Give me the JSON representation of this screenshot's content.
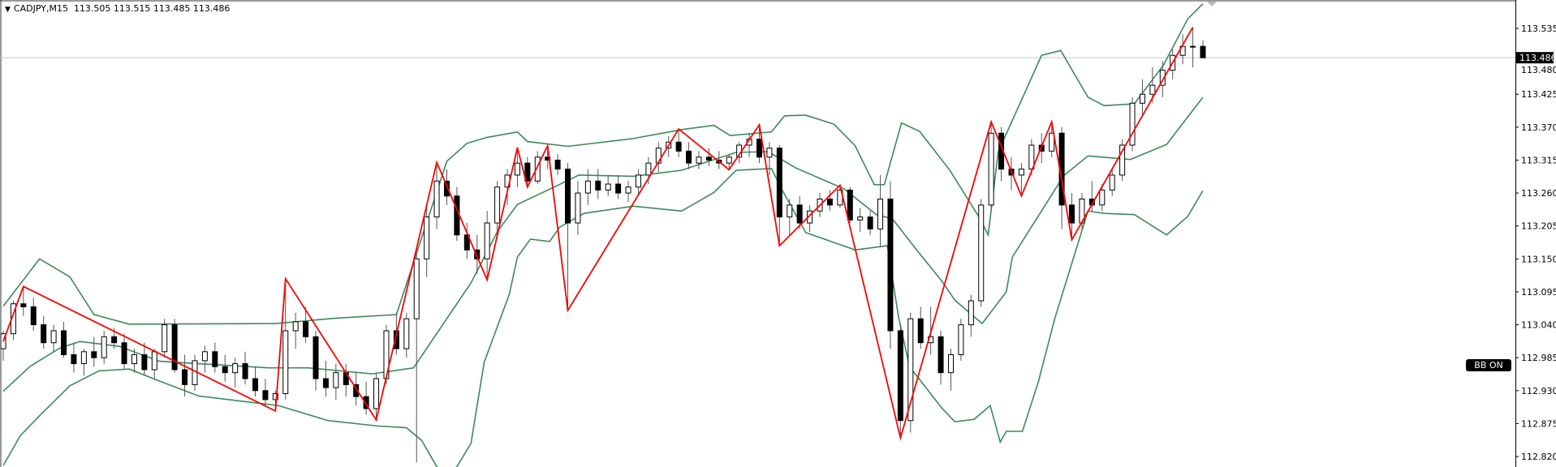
{
  "header": {
    "symbol_timeframe": "CADJPY,M15",
    "ohlc_readout": "113.505 113.515 113.485 113.486"
  },
  "bb_button": {
    "label": "BB ON"
  },
  "colors": {
    "bands": "#3a8a5a",
    "zigzag": "#ff0000",
    "bull_body": "#ffffff",
    "bear_body": "#000000",
    "bid_line": "#c8c8c8",
    "axis": "#000000"
  },
  "chart_data": {
    "type": "candlestick",
    "symbol": "CADJPY",
    "timeframe": "M15",
    "ylim": [
      112.802,
      113.582
    ],
    "y_ticks": [
      "113.535",
      "113.480",
      "113.425",
      "113.370",
      "113.315",
      "113.260",
      "113.205",
      "113.150",
      "113.095",
      "113.040",
      "112.985",
      "112.930",
      "112.875",
      "112.820"
    ],
    "bid": {
      "value": 113.486,
      "label": "113.486"
    },
    "candles_ohlc": [
      [
        113.0,
        113.03,
        112.98,
        113.025
      ],
      [
        113.025,
        113.08,
        113.015,
        113.075
      ],
      [
        113.075,
        113.104,
        113.055,
        113.07
      ],
      [
        113.07,
        113.085,
        113.03,
        113.04
      ],
      [
        113.04,
        113.055,
        113.0,
        113.01
      ],
      [
        113.01,
        113.04,
        112.995,
        113.03
      ],
      [
        113.03,
        113.045,
        112.985,
        112.99
      ],
      [
        112.99,
        113.01,
        112.96,
        112.975
      ],
      [
        112.975,
        113.0,
        112.955,
        112.995
      ],
      [
        112.995,
        113.02,
        112.97,
        112.985
      ],
      [
        112.985,
        113.03,
        112.975,
        113.02
      ],
      [
        113.02,
        113.035,
        113.0,
        113.01
      ],
      [
        113.01,
        113.025,
        112.965,
        112.975
      ],
      [
        112.975,
        113.0,
        112.96,
        112.99
      ],
      [
        112.99,
        113.01,
        112.955,
        112.965
      ],
      [
        112.965,
        113.0,
        112.95,
        112.995
      ],
      [
        112.995,
        113.05,
        112.985,
        113.04
      ],
      [
        113.04,
        113.05,
        112.96,
        112.965
      ],
      [
        112.965,
        112.99,
        112.92,
        112.94
      ],
      [
        112.94,
        112.99,
        112.93,
        112.98
      ],
      [
        112.98,
        113.005,
        112.96,
        112.995
      ],
      [
        112.995,
        113.01,
        112.96,
        112.97
      ],
      [
        112.97,
        112.99,
        112.945,
        112.96
      ],
      [
        112.96,
        112.985,
        112.935,
        112.975
      ],
      [
        112.975,
        112.995,
        112.94,
        112.95
      ],
      [
        112.95,
        112.97,
        112.92,
        112.93
      ],
      [
        112.93,
        112.95,
        112.905,
        112.915
      ],
      [
        112.915,
        112.93,
        112.896,
        112.925
      ],
      [
        112.925,
        113.117,
        112.915,
        113.03
      ],
      [
        113.03,
        113.06,
        113.0,
        113.045
      ],
      [
        113.045,
        113.07,
        113.01,
        113.02
      ],
      [
        113.02,
        113.03,
        112.93,
        112.95
      ],
      [
        112.95,
        112.98,
        112.92,
        112.935
      ],
      [
        112.935,
        112.975,
        112.915,
        112.96
      ],
      [
        112.96,
        112.975,
        112.92,
        112.94
      ],
      [
        112.94,
        112.96,
        112.905,
        112.92
      ],
      [
        112.92,
        112.945,
        112.89,
        112.9
      ],
      [
        112.9,
        112.96,
        112.881,
        112.95
      ],
      [
        112.95,
        113.04,
        112.94,
        113.03
      ],
      [
        113.03,
        113.06,
        112.99,
        113.0
      ],
      [
        113.0,
        113.06,
        112.985,
        113.05
      ],
      [
        113.05,
        113.16,
        112.81,
        113.15
      ],
      [
        113.15,
        113.24,
        113.12,
        113.22
      ],
      [
        113.22,
        113.311,
        113.2,
        113.28
      ],
      [
        113.28,
        113.3,
        113.24,
        113.255
      ],
      [
        113.255,
        113.27,
        113.18,
        113.19
      ],
      [
        113.19,
        113.21,
        113.15,
        113.165
      ],
      [
        113.165,
        113.19,
        113.125,
        113.15
      ],
      [
        113.15,
        113.23,
        113.115,
        113.21
      ],
      [
        113.21,
        113.28,
        113.19,
        113.27
      ],
      [
        113.27,
        113.3,
        113.24,
        113.29
      ],
      [
        113.29,
        113.336,
        113.27,
        113.31
      ],
      [
        113.31,
        113.32,
        113.27,
        113.28
      ],
      [
        113.28,
        113.33,
        113.275,
        113.32
      ],
      [
        113.32,
        113.339,
        113.3,
        113.315
      ],
      [
        113.315,
        113.325,
        113.29,
        113.3
      ],
      [
        113.3,
        113.31,
        113.064,
        113.21
      ],
      [
        113.21,
        113.28,
        113.19,
        113.26
      ],
      [
        113.26,
        113.3,
        113.24,
        113.28
      ],
      [
        113.28,
        113.3,
        113.25,
        113.265
      ],
      [
        113.265,
        113.29,
        113.255,
        113.275
      ],
      [
        113.275,
        113.29,
        113.25,
        113.26
      ],
      [
        113.26,
        113.28,
        113.245,
        113.27
      ],
      [
        113.27,
        113.3,
        113.255,
        113.29
      ],
      [
        113.29,
        113.32,
        113.275,
        113.31
      ],
      [
        113.31,
        113.345,
        113.295,
        113.335
      ],
      [
        113.335,
        113.355,
        113.32,
        113.345
      ],
      [
        113.345,
        113.367,
        113.32,
        113.33
      ],
      [
        113.33,
        113.345,
        113.3,
        113.31
      ],
      [
        113.31,
        113.33,
        113.3,
        113.32
      ],
      [
        113.32,
        113.335,
        113.305,
        113.315
      ],
      [
        113.315,
        113.33,
        113.3,
        113.31
      ],
      [
        113.31,
        113.325,
        113.299,
        113.32
      ],
      [
        113.32,
        113.345,
        113.31,
        113.34
      ],
      [
        113.34,
        113.36,
        113.32,
        113.35
      ],
      [
        113.35,
        113.374,
        113.31,
        113.32
      ],
      [
        113.32,
        113.345,
        113.29,
        113.335
      ],
      [
        113.335,
        113.34,
        113.172,
        113.22
      ],
      [
        113.22,
        113.25,
        113.19,
        113.24
      ],
      [
        113.24,
        113.255,
        113.2,
        113.21
      ],
      [
        113.21,
        113.24,
        113.195,
        113.23
      ],
      [
        113.23,
        113.26,
        113.22,
        113.25
      ],
      [
        113.25,
        113.265,
        113.23,
        113.24
      ],
      [
        113.24,
        113.273,
        113.235,
        113.265
      ],
      [
        113.265,
        113.27,
        113.21,
        113.215
      ],
      [
        113.215,
        113.235,
        113.195,
        113.22
      ],
      [
        113.22,
        113.23,
        113.19,
        113.2
      ],
      [
        113.2,
        113.29,
        113.17,
        113.25
      ],
      [
        113.25,
        113.28,
        113.0,
        113.03
      ],
      [
        113.03,
        113.04,
        112.851,
        112.88
      ],
      [
        112.88,
        113.06,
        112.86,
        113.05
      ],
      [
        113.05,
        113.07,
        113.0,
        113.01
      ],
      [
        113.01,
        113.07,
        112.99,
        113.02
      ],
      [
        113.02,
        113.03,
        112.94,
        112.96
      ],
      [
        112.96,
        113.0,
        112.93,
        112.99
      ],
      [
        112.99,
        113.05,
        112.98,
        113.04
      ],
      [
        113.04,
        113.09,
        113.02,
        113.08
      ],
      [
        113.08,
        113.25,
        113.07,
        113.24
      ],
      [
        113.24,
        113.379,
        113.23,
        113.36
      ],
      [
        113.36,
        113.37,
        113.28,
        113.3
      ],
      [
        113.3,
        113.32,
        113.265,
        113.29
      ],
      [
        113.29,
        113.31,
        113.255,
        113.3
      ],
      [
        113.3,
        113.35,
        113.29,
        113.34
      ],
      [
        113.34,
        113.36,
        113.31,
        113.33
      ],
      [
        113.33,
        113.379,
        113.32,
        113.36
      ],
      [
        113.36,
        113.37,
        113.2,
        113.24
      ],
      [
        113.24,
        113.26,
        113.182,
        113.21
      ],
      [
        113.21,
        113.26,
        113.2,
        113.25
      ],
      [
        113.25,
        113.28,
        113.23,
        113.24
      ],
      [
        113.24,
        113.275,
        113.23,
        113.265
      ],
      [
        113.265,
        113.3,
        113.255,
        113.29
      ],
      [
        113.29,
        113.35,
        113.28,
        113.34
      ],
      [
        113.34,
        113.42,
        113.33,
        113.41
      ],
      [
        113.41,
        113.45,
        113.39,
        113.425
      ],
      [
        113.425,
        113.47,
        113.41,
        113.44
      ],
      [
        113.44,
        113.48,
        113.42,
        113.465
      ],
      [
        113.465,
        113.5,
        113.45,
        113.49
      ],
      [
        113.49,
        113.525,
        113.475,
        113.505
      ],
      [
        113.505,
        113.537,
        113.47,
        113.505
      ],
      [
        113.505,
        113.515,
        113.485,
        113.486
      ]
    ],
    "zigzag": [
      [
        0,
        113.012
      ],
      [
        2,
        113.104
      ],
      [
        27,
        112.896
      ],
      [
        28,
        113.117
      ],
      [
        37,
        112.881
      ],
      [
        43,
        113.311
      ],
      [
        48,
        113.115
      ],
      [
        51,
        113.336
      ],
      [
        52,
        113.27
      ],
      [
        54,
        113.339
      ],
      [
        56,
        113.064
      ],
      [
        67,
        113.367
      ],
      [
        72,
        113.299
      ],
      [
        75,
        113.374
      ],
      [
        77,
        113.172
      ],
      [
        83,
        113.273
      ],
      [
        89,
        112.851
      ],
      [
        98,
        113.379
      ],
      [
        101,
        113.255
      ],
      [
        104,
        113.379
      ],
      [
        106,
        113.182
      ],
      [
        118,
        113.537
      ]
    ],
    "bollinger_upper": [
      [
        0,
        113.071
      ],
      [
        3.6,
        113.15
      ],
      [
        6.6,
        113.12
      ],
      [
        9,
        113.057
      ],
      [
        12.5,
        113.041
      ],
      [
        27,
        113.042
      ],
      [
        33,
        113.051
      ],
      [
        39,
        113.057
      ],
      [
        44,
        113.313
      ],
      [
        46,
        113.343
      ],
      [
        48,
        113.353
      ],
      [
        51,
        113.362
      ],
      [
        52,
        113.346
      ],
      [
        56,
        113.338
      ],
      [
        62.5,
        113.351
      ],
      [
        67.3,
        113.366
      ],
      [
        70.5,
        113.373
      ],
      [
        72.1,
        113.356
      ],
      [
        76.2,
        113.362
      ],
      [
        77.5,
        113.389
      ],
      [
        79.6,
        113.39
      ],
      [
        82.4,
        113.375
      ],
      [
        84.5,
        113.339
      ],
      [
        86.4,
        113.274
      ],
      [
        87.4,
        113.274
      ],
      [
        89.1,
        113.377
      ],
      [
        90.9,
        113.363
      ],
      [
        93.9,
        113.298
      ],
      [
        96.9,
        113.217
      ],
      [
        97.7,
        113.19
      ],
      [
        98.7,
        113.329
      ],
      [
        103,
        113.49
      ],
      [
        104.9,
        113.498
      ],
      [
        107.6,
        113.42
      ],
      [
        109.2,
        113.406
      ],
      [
        112.2,
        113.409
      ],
      [
        115.1,
        113.474
      ],
      [
        117.5,
        113.551
      ],
      [
        119,
        113.576
      ]
    ],
    "bollinger_middle": [
      [
        0,
        112.929
      ],
      [
        2.7,
        112.971
      ],
      [
        5.6,
        113.001
      ],
      [
        7.6,
        113.012
      ],
      [
        11.5,
        113.004
      ],
      [
        15.5,
        112.979
      ],
      [
        26.3,
        112.968
      ],
      [
        30.3,
        112.968
      ],
      [
        36.6,
        112.958
      ],
      [
        40.7,
        112.968
      ],
      [
        46.4,
        113.11
      ],
      [
        49,
        113.195
      ],
      [
        51,
        113.241
      ],
      [
        54.4,
        113.268
      ],
      [
        57.1,
        113.29
      ],
      [
        62.5,
        113.288
      ],
      [
        67.3,
        113.298
      ],
      [
        72.7,
        113.328
      ],
      [
        75.9,
        113.329
      ],
      [
        78.6,
        113.302
      ],
      [
        83.4,
        113.267
      ],
      [
        86.6,
        113.224
      ],
      [
        88.2,
        113.217
      ],
      [
        90.7,
        113.163
      ],
      [
        93.1,
        113.113
      ],
      [
        94.4,
        113.081
      ],
      [
        97.1,
        113.042
      ],
      [
        99.5,
        113.095
      ],
      [
        100.1,
        113.153
      ],
      [
        105.2,
        113.289
      ],
      [
        107.6,
        113.322
      ],
      [
        111.8,
        113.316
      ],
      [
        115.4,
        113.341
      ],
      [
        119,
        113.42
      ]
    ],
    "bollinger_lower": [
      [
        0,
        112.805
      ],
      [
        1.7,
        112.855
      ],
      [
        3.6,
        112.888
      ],
      [
        6.6,
        112.938
      ],
      [
        9.5,
        112.963
      ],
      [
        12.5,
        112.966
      ],
      [
        15.5,
        112.946
      ],
      [
        19.4,
        112.921
      ],
      [
        23.3,
        112.913
      ],
      [
        27.3,
        112.905
      ],
      [
        32.2,
        112.88
      ],
      [
        37.1,
        112.871
      ],
      [
        40,
        112.868
      ],
      [
        41.5,
        112.847
      ],
      [
        43,
        112.803
      ],
      [
        44,
        112.792
      ],
      [
        45,
        112.803
      ],
      [
        46.4,
        112.842
      ],
      [
        47.7,
        112.977
      ],
      [
        50.2,
        113.091
      ],
      [
        51,
        113.153
      ],
      [
        52.3,
        113.183
      ],
      [
        54.2,
        113.179
      ],
      [
        55.2,
        113.203
      ],
      [
        57.6,
        113.226
      ],
      [
        62.5,
        113.238
      ],
      [
        67.3,
        113.23
      ],
      [
        70.5,
        113.261
      ],
      [
        72.7,
        113.298
      ],
      [
        76.2,
        113.301
      ],
      [
        77.2,
        113.267
      ],
      [
        79.6,
        113.194
      ],
      [
        84.5,
        113.165
      ],
      [
        87.7,
        113.172
      ],
      [
        88.8,
        113.054
      ],
      [
        89.9,
        112.97
      ],
      [
        93.1,
        112.901
      ],
      [
        94.4,
        112.878
      ],
      [
        96.3,
        112.882
      ],
      [
        97.9,
        112.905
      ],
      [
        98.9,
        112.844
      ],
      [
        99.5,
        112.862
      ],
      [
        101.1,
        112.862
      ],
      [
        102.7,
        112.946
      ],
      [
        104.3,
        113.05
      ],
      [
        107.6,
        113.23
      ],
      [
        109.2,
        113.226
      ],
      [
        112.2,
        113.224
      ],
      [
        115.4,
        113.19
      ],
      [
        117.5,
        113.221
      ],
      [
        119,
        113.264
      ]
    ]
  }
}
